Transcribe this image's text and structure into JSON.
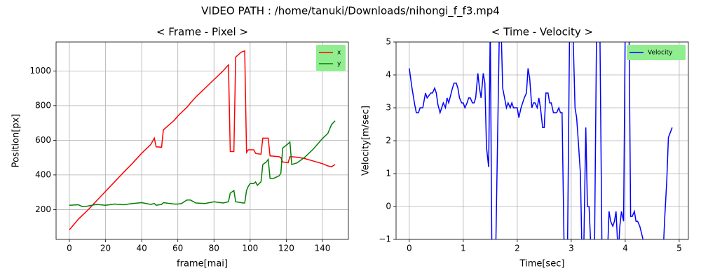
{
  "title": "VIDEO PATH : /home/tanuki/Downloads/nihongi_f_f3.mp4",
  "chart_data": [
    {
      "type": "line",
      "title": "< Frame - Pixel >",
      "x_label": "frame[mai]",
      "y_label": "Position[px]",
      "x": [
        0,
        5,
        7,
        10,
        15,
        20,
        25,
        30,
        35,
        40,
        45,
        47,
        48,
        51,
        52,
        58,
        60,
        62,
        65,
        67,
        70,
        75,
        80,
        85,
        88,
        89,
        91,
        92,
        95,
        96,
        97,
        98,
        99,
        100,
        102,
        103,
        104,
        106,
        107,
        109,
        110,
        111,
        113,
        116,
        117,
        118,
        121,
        122,
        123,
        126,
        130,
        135,
        140,
        143,
        145,
        147
      ],
      "series": [
        {
          "name": "x",
          "color": "#ff0000",
          "values": [
            83,
            145,
            165,
            195,
            250,
            305,
            360,
            415,
            468,
            525,
            575,
            612,
            562,
            560,
            660,
            715,
            740,
            760,
            790,
            815,
            850,
            900,
            950,
            1000,
            1035,
            535,
            535,
            1080,
            1108,
            1112,
            1115,
            530,
            545,
            545,
            545,
            525,
            522,
            520,
            612,
            612,
            612,
            510,
            508,
            505,
            500,
            475,
            470,
            505,
            505,
            502,
            495,
            480,
            465,
            452,
            447,
            460
          ]
        },
        {
          "name": "y",
          "color": "#008000",
          "values": [
            225,
            228,
            218,
            220,
            230,
            225,
            232,
            228,
            235,
            240,
            230,
            235,
            225,
            230,
            240,
            232,
            232,
            235,
            255,
            255,
            238,
            235,
            245,
            238,
            245,
            295,
            310,
            245,
            240,
            238,
            238,
            310,
            335,
            350,
            350,
            360,
            340,
            360,
            460,
            475,
            490,
            380,
            380,
            395,
            410,
            555,
            580,
            590,
            460,
            470,
            500,
            550,
            610,
            640,
            690,
            712
          ]
        }
      ],
      "xlim": [
        -7.35,
        154.35
      ],
      "ylim": [
        28,
        1167
      ],
      "xticks": [
        0,
        20,
        40,
        60,
        80,
        100,
        120,
        140
      ],
      "yticks": [
        200,
        400,
        600,
        800,
        1000
      ],
      "grid": true,
      "legend": "upper right"
    },
    {
      "type": "line",
      "title": "< Time - Velocity >",
      "x_label": "Time[sec]",
      "y_label": "Velocity[m/sec]",
      "x": [
        0,
        0.05,
        0.1,
        0.13,
        0.17,
        0.2,
        0.25,
        0.3,
        0.33,
        0.4,
        0.43,
        0.47,
        0.5,
        0.53,
        0.57,
        0.6,
        0.63,
        0.67,
        0.7,
        0.73,
        0.8,
        0.83,
        0.87,
        0.9,
        0.93,
        0.97,
        1.0,
        1.03,
        1.07,
        1.1,
        1.13,
        1.17,
        1.2,
        1.23,
        1.27,
        1.3,
        1.33,
        1.37,
        1.4,
        1.43,
        1.47,
        1.5,
        1.53,
        1.6,
        1.67,
        1.7,
        1.73,
        1.8,
        1.83,
        1.87,
        1.9,
        1.93,
        2.0,
        2.03,
        2.07,
        2.13,
        2.17,
        2.2,
        2.23,
        2.27,
        2.3,
        2.33,
        2.37,
        2.4,
        2.43,
        2.47,
        2.5,
        2.53,
        2.57,
        2.6,
        2.63,
        2.67,
        2.73,
        2.77,
        2.8,
        2.83,
        2.87,
        2.93,
        2.97,
        3.03,
        3.07,
        3.1,
        3.13,
        3.17,
        3.2,
        3.23,
        3.27,
        3.3,
        3.33,
        3.37,
        3.43,
        3.47,
        3.53,
        3.57,
        3.67,
        3.7,
        3.73,
        3.77,
        3.8,
        3.83,
        3.87,
        3.9,
        3.93,
        3.97,
        4.0,
        4.07,
        4.1,
        4.13,
        4.17,
        4.2,
        4.23,
        4.27,
        4.3,
        4.33,
        4.37,
        4.4,
        4.7,
        4.73,
        4.77,
        4.8,
        4.87
      ],
      "series": [
        {
          "name": "Velocity",
          "color": "#0000ff",
          "values": [
            4.2,
            3.6,
            3.1,
            2.85,
            2.85,
            3.0,
            3.0,
            3.45,
            3.3,
            3.45,
            3.45,
            3.6,
            3.45,
            3.1,
            2.85,
            3.0,
            3.15,
            3.0,
            3.3,
            3.15,
            3.6,
            3.75,
            3.75,
            3.6,
            3.3,
            3.15,
            3.15,
            3.0,
            3.15,
            3.3,
            3.3,
            3.15,
            3.15,
            3.3,
            4.05,
            3.6,
            3.3,
            4.05,
            3.75,
            1.8,
            1.2,
            5.5,
            -1.5,
            -1.5,
            5.5,
            5.5,
            3.6,
            3.0,
            3.15,
            3.0,
            3.15,
            3.0,
            3.0,
            2.7,
            3.0,
            3.3,
            3.45,
            4.2,
            3.9,
            3.0,
            3.15,
            3.15,
            3.0,
            3.3,
            3.0,
            2.4,
            2.4,
            3.45,
            3.45,
            3.15,
            3.15,
            2.85,
            2.85,
            3.0,
            2.85,
            2.85,
            -1.5,
            -1.5,
            5.5,
            5.5,
            3.0,
            2.7,
            2.0,
            1.0,
            -1.5,
            -1.5,
            2.4,
            0.0,
            0.0,
            -1.5,
            -1.5,
            5.5,
            5.5,
            -1.5,
            -1.5,
            -0.15,
            -0.45,
            -0.6,
            -0.45,
            -0.15,
            -1.5,
            -0.6,
            -0.15,
            -0.45,
            5.5,
            5.5,
            -0.3,
            -0.3,
            -0.15,
            -0.45,
            -0.45,
            -0.6,
            -0.8,
            -1.0,
            -1.1,
            -1.5,
            -1.5,
            -0.4,
            0.8,
            2.1,
            2.4
          ]
        }
      ],
      "xlim": [
        -0.245,
        5.17
      ],
      "ylim": [
        -1,
        5
      ],
      "xticks": [
        0,
        1,
        2,
        3,
        4,
        5
      ],
      "yticks": [
        {
          "value": -1,
          "label": "−1"
        },
        0,
        1,
        2,
        3,
        4,
        5
      ],
      "grid": true,
      "legend": "upper right"
    }
  ]
}
